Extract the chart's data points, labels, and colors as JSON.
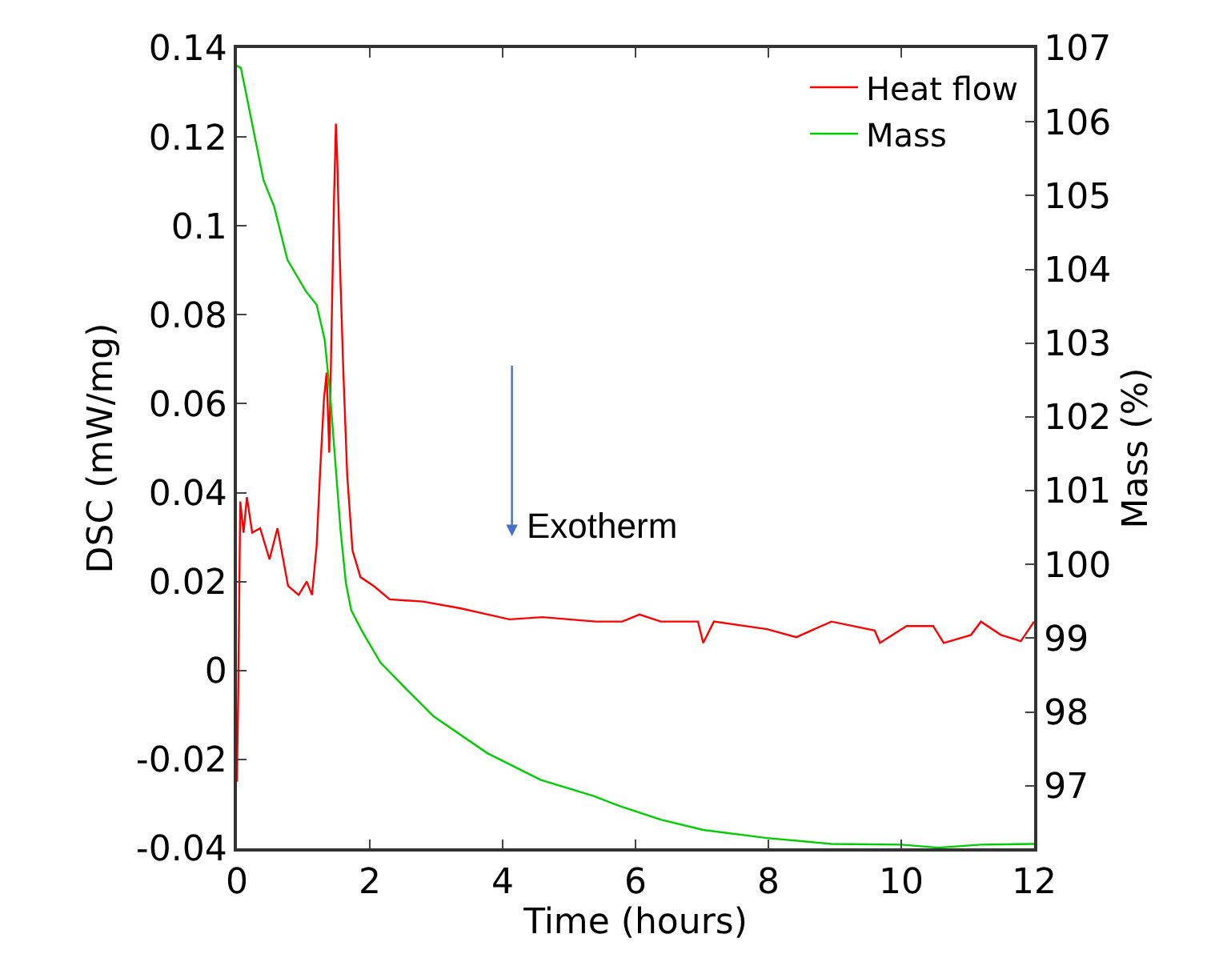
{
  "chart_data": {
    "type": "line",
    "xlabel": "Time (hours)",
    "ylabel": "DSC (mW/mg)",
    "y2label": "Mass (%)",
    "xlim": [
      0,
      12
    ],
    "xticks": [
      0,
      2,
      4,
      6,
      8,
      10,
      12
    ],
    "ylim": [
      -0.04,
      0.14
    ],
    "yticks": [
      -0.04,
      -0.02,
      0,
      0.02,
      0.04,
      0.06,
      0.08,
      0.1,
      0.12,
      0.14
    ],
    "y2lim": [
      96.15,
      107
    ],
    "y2ticks": [
      97,
      98,
      99,
      100,
      101,
      102,
      103,
      104,
      105,
      106,
      107
    ],
    "legend": "top right",
    "marker": "none",
    "line_style": "solid",
    "annotations": [
      "Exotherm"
    ],
    "series": [
      {
        "name": "Heat flow",
        "color": "#ff0000",
        "x": [
          0,
          0.02,
          0.05,
          0.1,
          0.15,
          0.23,
          0.35,
          0.49,
          0.61,
          0.77,
          0.93,
          1.05,
          1.13,
          1.2,
          1.25,
          1.31,
          1.35,
          1.39,
          1.43,
          1.46,
          1.49,
          1.51,
          1.55,
          1.6,
          1.66,
          1.74,
          1.86,
          2.06,
          2.3,
          2.8,
          3.36,
          4.1,
          4.6,
          5.4,
          5.8,
          6.06,
          6.38,
          6.94,
          7.02,
          7.18,
          7.98,
          8.42,
          8.95,
          9.6,
          9.68,
          10.08,
          10.48,
          10.64,
          11.05,
          11.2,
          11.5,
          11.8,
          12
        ],
        "values": [
          -0.025,
          -0.005,
          0.038,
          0.031,
          0.039,
          0.031,
          0.032,
          0.025,
          0.032,
          0.019,
          0.017,
          0.02,
          0.017,
          0.028,
          0.044,
          0.061,
          0.067,
          0.049,
          0.081,
          0.105,
          0.123,
          0.115,
          0.092,
          0.068,
          0.044,
          0.027,
          0.021,
          0.019,
          0.016,
          0.0155,
          0.014,
          0.0115,
          0.012,
          0.011,
          0.011,
          0.0126,
          0.011,
          0.011,
          0.0062,
          0.011,
          0.0093,
          0.0075,
          0.011,
          0.009,
          0.0062,
          0.01,
          0.01,
          0.0062,
          0.008,
          0.011,
          0.008,
          0.0066,
          0.011
        ]
      },
      {
        "name": "Mass",
        "color": "#00cc00",
        "axis": "y2",
        "x": [
          0,
          0.06,
          0.4,
          0.56,
          0.76,
          1.04,
          1.2,
          1.32,
          1.4,
          1.48,
          1.56,
          1.64,
          1.72,
          1.88,
          2.16,
          2.56,
          2.96,
          3.77,
          4.57,
          5.37,
          5.77,
          6.38,
          7.02,
          7.98,
          8.95,
          10.0,
          10.56,
          11.2,
          12
        ],
        "values": [
          106.76,
          106.73,
          105.21,
          104.85,
          104.13,
          103.7,
          103.52,
          103.05,
          102.34,
          101.4,
          100.46,
          99.75,
          99.38,
          99.1,
          98.67,
          98.3,
          97.94,
          97.44,
          97.08,
          96.86,
          96.72,
          96.54,
          96.4,
          96.29,
          96.21,
          96.2,
          96.16,
          96.2,
          96.21
        ]
      }
    ]
  }
}
